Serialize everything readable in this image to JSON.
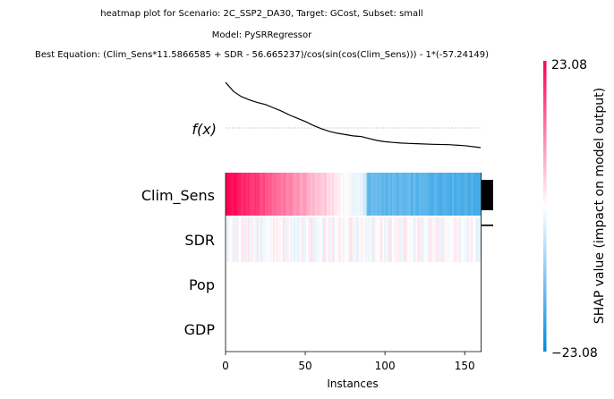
{
  "chart_data": {
    "type": "heatmap",
    "title_lines": [
      "heatmap plot for Scenario: 2C_SSP2_DA30, Target: GCost, Subset: small",
      "Model: PySRRegressor",
      "Best Equation: (Clim_Sens*11.5866585 + SDR - 56.665237)/cos(sin(cos(Clim_Sens))) - 1*(-57.24149)"
    ],
    "fx_label": "f(x)",
    "xlabel": "Instances",
    "x_ticks": [
      0,
      50,
      100,
      150
    ],
    "n_instances": 161,
    "features": [
      "Clim_Sens",
      "SDR",
      "Pop",
      "GDP"
    ],
    "importance": [
      1.0,
      0.05,
      0.0,
      0.0
    ],
    "colorbar": {
      "label": "SHAP value (impact on model output)",
      "max_label": "23.08",
      "min_label": "−23.08",
      "max": 23.08,
      "min": -23.08,
      "high_color": "#ff0052",
      "low_color": "#008bdf"
    },
    "fx_curve": [
      {
        "x": 0,
        "y": 1.0
      },
      {
        "x": 5,
        "y": 0.86
      },
      {
        "x": 10,
        "y": 0.78
      },
      {
        "x": 15,
        "y": 0.73
      },
      {
        "x": 20,
        "y": 0.69
      },
      {
        "x": 25,
        "y": 0.66
      },
      {
        "x": 30,
        "y": 0.61
      },
      {
        "x": 35,
        "y": 0.56
      },
      {
        "x": 40,
        "y": 0.5
      },
      {
        "x": 45,
        "y": 0.45
      },
      {
        "x": 50,
        "y": 0.4
      },
      {
        "x": 55,
        "y": 0.34
      },
      {
        "x": 60,
        "y": 0.29
      },
      {
        "x": 65,
        "y": 0.25
      },
      {
        "x": 70,
        "y": 0.22
      },
      {
        "x": 75,
        "y": 0.2
      },
      {
        "x": 80,
        "y": 0.18
      },
      {
        "x": 85,
        "y": 0.17
      },
      {
        "x": 90,
        "y": 0.14
      },
      {
        "x": 95,
        "y": 0.11
      },
      {
        "x": 100,
        "y": 0.09
      },
      {
        "x": 105,
        "y": 0.08
      },
      {
        "x": 110,
        "y": 0.07
      },
      {
        "x": 115,
        "y": 0.065
      },
      {
        "x": 120,
        "y": 0.06
      },
      {
        "x": 130,
        "y": 0.05
      },
      {
        "x": 140,
        "y": 0.045
      },
      {
        "x": 150,
        "y": 0.03
      },
      {
        "x": 160,
        "y": 0.0
      }
    ]
  }
}
